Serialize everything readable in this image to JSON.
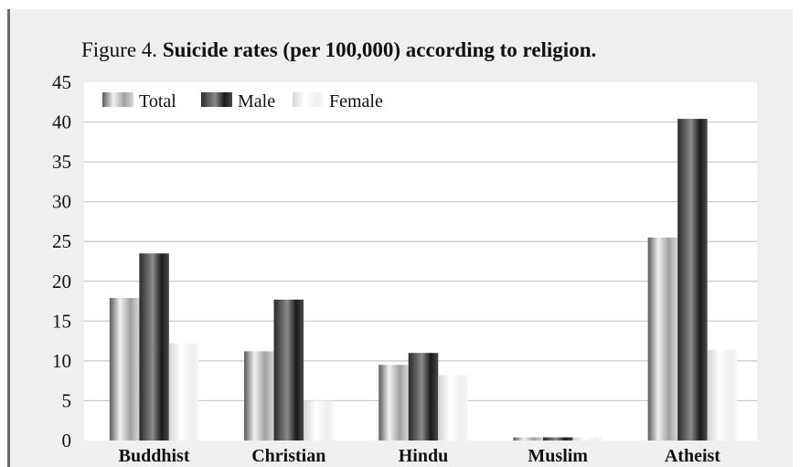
{
  "figure": {
    "prefix": "Figure 4.",
    "heading": "Suicide rates (per 100,000) according to religion."
  },
  "chart_data": {
    "type": "bar",
    "title": "Figure 4. Suicide rates (per 100,000) according to religion.",
    "xlabel": "",
    "ylabel": "",
    "categories": [
      "Buddhist",
      "Christian",
      "Hindu",
      "Muslim",
      "Atheist"
    ],
    "ylim": [
      0,
      45
    ],
    "yticks": [
      0,
      5,
      10,
      15,
      20,
      25,
      30,
      35,
      40,
      45
    ],
    "grid": true,
    "legend_position": "top-left",
    "series": [
      {
        "name": "Total",
        "values": [
          17.9,
          11.2,
          9.5,
          0.4,
          25.5
        ],
        "style": "gray-gradient"
      },
      {
        "name": "Male",
        "values": [
          23.5,
          17.7,
          11.0,
          0.4,
          40.4
        ],
        "style": "dark-gradient"
      },
      {
        "name": "Female",
        "values": [
          12.2,
          5.0,
          8.2,
          0.4,
          11.4
        ],
        "style": "light-gradient"
      }
    ]
  }
}
